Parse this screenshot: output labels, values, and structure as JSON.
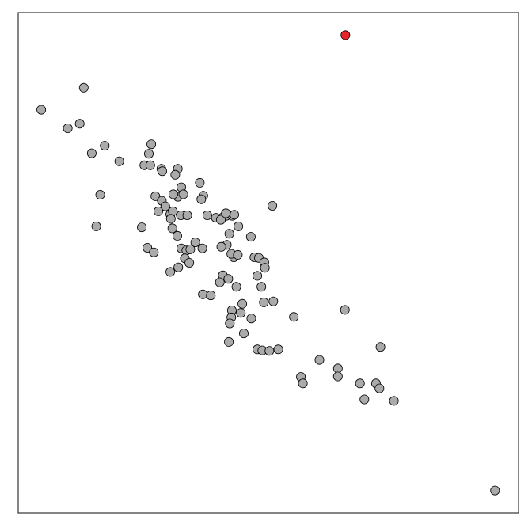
{
  "chart_data": {
    "type": "scatter",
    "title": "",
    "xlabel": "",
    "ylabel": "",
    "xlim": [
      0,
      100
    ],
    "ylim": [
      0,
      100
    ],
    "axes_visible": false,
    "grid": false,
    "legend": "none",
    "colors": {
      "default": "#aaaaaa",
      "highlight": "#e8262a",
      "stroke": "#000000",
      "frame": "#333333"
    },
    "highlighted_points": [
      {
        "x": 65.4,
        "y": 95.5
      }
    ],
    "points": [
      {
        "x": 4.6,
        "y": 80.6
      },
      {
        "x": 13.1,
        "y": 85.0
      },
      {
        "x": 9.9,
        "y": 76.9
      },
      {
        "x": 12.3,
        "y": 77.8
      },
      {
        "x": 14.7,
        "y": 71.9
      },
      {
        "x": 17.3,
        "y": 73.4
      },
      {
        "x": 20.2,
        "y": 70.3
      },
      {
        "x": 16.4,
        "y": 63.6
      },
      {
        "x": 15.6,
        "y": 57.3
      },
      {
        "x": 27.4,
        "y": 63.3
      },
      {
        "x": 24.7,
        "y": 57.1
      },
      {
        "x": 25.8,
        "y": 53.0
      },
      {
        "x": 27.1,
        "y": 52.1
      },
      {
        "x": 26.6,
        "y": 73.7
      },
      {
        "x": 26.1,
        "y": 71.8
      },
      {
        "x": 25.2,
        "y": 69.5
      },
      {
        "x": 26.4,
        "y": 69.5
      },
      {
        "x": 28.6,
        "y": 68.8
      },
      {
        "x": 28.8,
        "y": 68.3
      },
      {
        "x": 31.9,
        "y": 68.8
      },
      {
        "x": 31.4,
        "y": 67.6
      },
      {
        "x": 32.6,
        "y": 65.1
      },
      {
        "x": 31.9,
        "y": 63.2
      },
      {
        "x": 31.0,
        "y": 63.7
      },
      {
        "x": 33.0,
        "y": 63.7
      },
      {
        "x": 28.7,
        "y": 62.4
      },
      {
        "x": 29.4,
        "y": 61.3
      },
      {
        "x": 28.0,
        "y": 60.3
      },
      {
        "x": 30.4,
        "y": 59.7
      },
      {
        "x": 30.9,
        "y": 60.3
      },
      {
        "x": 32.5,
        "y": 59.5
      },
      {
        "x": 30.5,
        "y": 58.8
      },
      {
        "x": 30.8,
        "y": 56.9
      },
      {
        "x": 31.8,
        "y": 55.4
      },
      {
        "x": 33.8,
        "y": 59.5
      },
      {
        "x": 35.4,
        "y": 54.1
      },
      {
        "x": 32.6,
        "y": 52.9
      },
      {
        "x": 33.6,
        "y": 52.5
      },
      {
        "x": 34.4,
        "y": 52.7
      },
      {
        "x": 33.3,
        "y": 50.9
      },
      {
        "x": 34.2,
        "y": 50.0
      },
      {
        "x": 32.0,
        "y": 49.1
      },
      {
        "x": 30.4,
        "y": 48.2
      },
      {
        "x": 36.8,
        "y": 52.9
      },
      {
        "x": 41.7,
        "y": 53.6
      },
      {
        "x": 40.6,
        "y": 53.2
      },
      {
        "x": 42.2,
        "y": 55.8
      },
      {
        "x": 43.1,
        "y": 51.1
      },
      {
        "x": 42.6,
        "y": 51.8
      },
      {
        "x": 43.9,
        "y": 51.6
      },
      {
        "x": 36.3,
        "y": 66.0
      },
      {
        "x": 37.0,
        "y": 63.4
      },
      {
        "x": 36.6,
        "y": 62.7
      },
      {
        "x": 37.8,
        "y": 59.5
      },
      {
        "x": 39.5,
        "y": 59.0
      },
      {
        "x": 40.9,
        "y": 59.1
      },
      {
        "x": 41.6,
        "y": 59.4
      },
      {
        "x": 42.8,
        "y": 59.4
      },
      {
        "x": 43.2,
        "y": 59.6
      },
      {
        "x": 40.5,
        "y": 58.6
      },
      {
        "x": 41.5,
        "y": 59.9
      },
      {
        "x": 44.0,
        "y": 57.3
      },
      {
        "x": 46.5,
        "y": 55.2
      },
      {
        "x": 47.2,
        "y": 51.1
      },
      {
        "x": 48.1,
        "y": 51.0
      },
      {
        "x": 49.2,
        "y": 50.1
      },
      {
        "x": 49.3,
        "y": 49.0
      },
      {
        "x": 50.8,
        "y": 61.4
      },
      {
        "x": 40.9,
        "y": 47.5
      },
      {
        "x": 42.0,
        "y": 46.8
      },
      {
        "x": 40.3,
        "y": 46.1
      },
      {
        "x": 43.6,
        "y": 45.2
      },
      {
        "x": 36.9,
        "y": 43.7
      },
      {
        "x": 38.5,
        "y": 43.5
      },
      {
        "x": 47.8,
        "y": 47.4
      },
      {
        "x": 48.6,
        "y": 45.2
      },
      {
        "x": 44.8,
        "y": 41.8
      },
      {
        "x": 42.7,
        "y": 40.5
      },
      {
        "x": 44.5,
        "y": 40.0
      },
      {
        "x": 42.6,
        "y": 39.1
      },
      {
        "x": 46.6,
        "y": 38.9
      },
      {
        "x": 49.1,
        "y": 42.1
      },
      {
        "x": 51.0,
        "y": 42.3
      },
      {
        "x": 42.3,
        "y": 37.9
      },
      {
        "x": 45.1,
        "y": 35.9
      },
      {
        "x": 42.1,
        "y": 34.2
      },
      {
        "x": 47.8,
        "y": 32.7
      },
      {
        "x": 48.8,
        "y": 32.5
      },
      {
        "x": 50.2,
        "y": 32.4
      },
      {
        "x": 52.0,
        "y": 32.7
      },
      {
        "x": 55.1,
        "y": 39.2
      },
      {
        "x": 65.3,
        "y": 40.6
      },
      {
        "x": 72.4,
        "y": 33.2
      },
      {
        "x": 60.2,
        "y": 30.6
      },
      {
        "x": 63.9,
        "y": 28.9
      },
      {
        "x": 63.9,
        "y": 27.3
      },
      {
        "x": 56.5,
        "y": 27.2
      },
      {
        "x": 56.9,
        "y": 25.9
      },
      {
        "x": 68.3,
        "y": 25.9
      },
      {
        "x": 71.5,
        "y": 25.9
      },
      {
        "x": 72.2,
        "y": 24.9
      },
      {
        "x": 69.2,
        "y": 22.7
      },
      {
        "x": 75.1,
        "y": 22.4
      },
      {
        "x": 95.3,
        "y": 4.5
      }
    ]
  }
}
